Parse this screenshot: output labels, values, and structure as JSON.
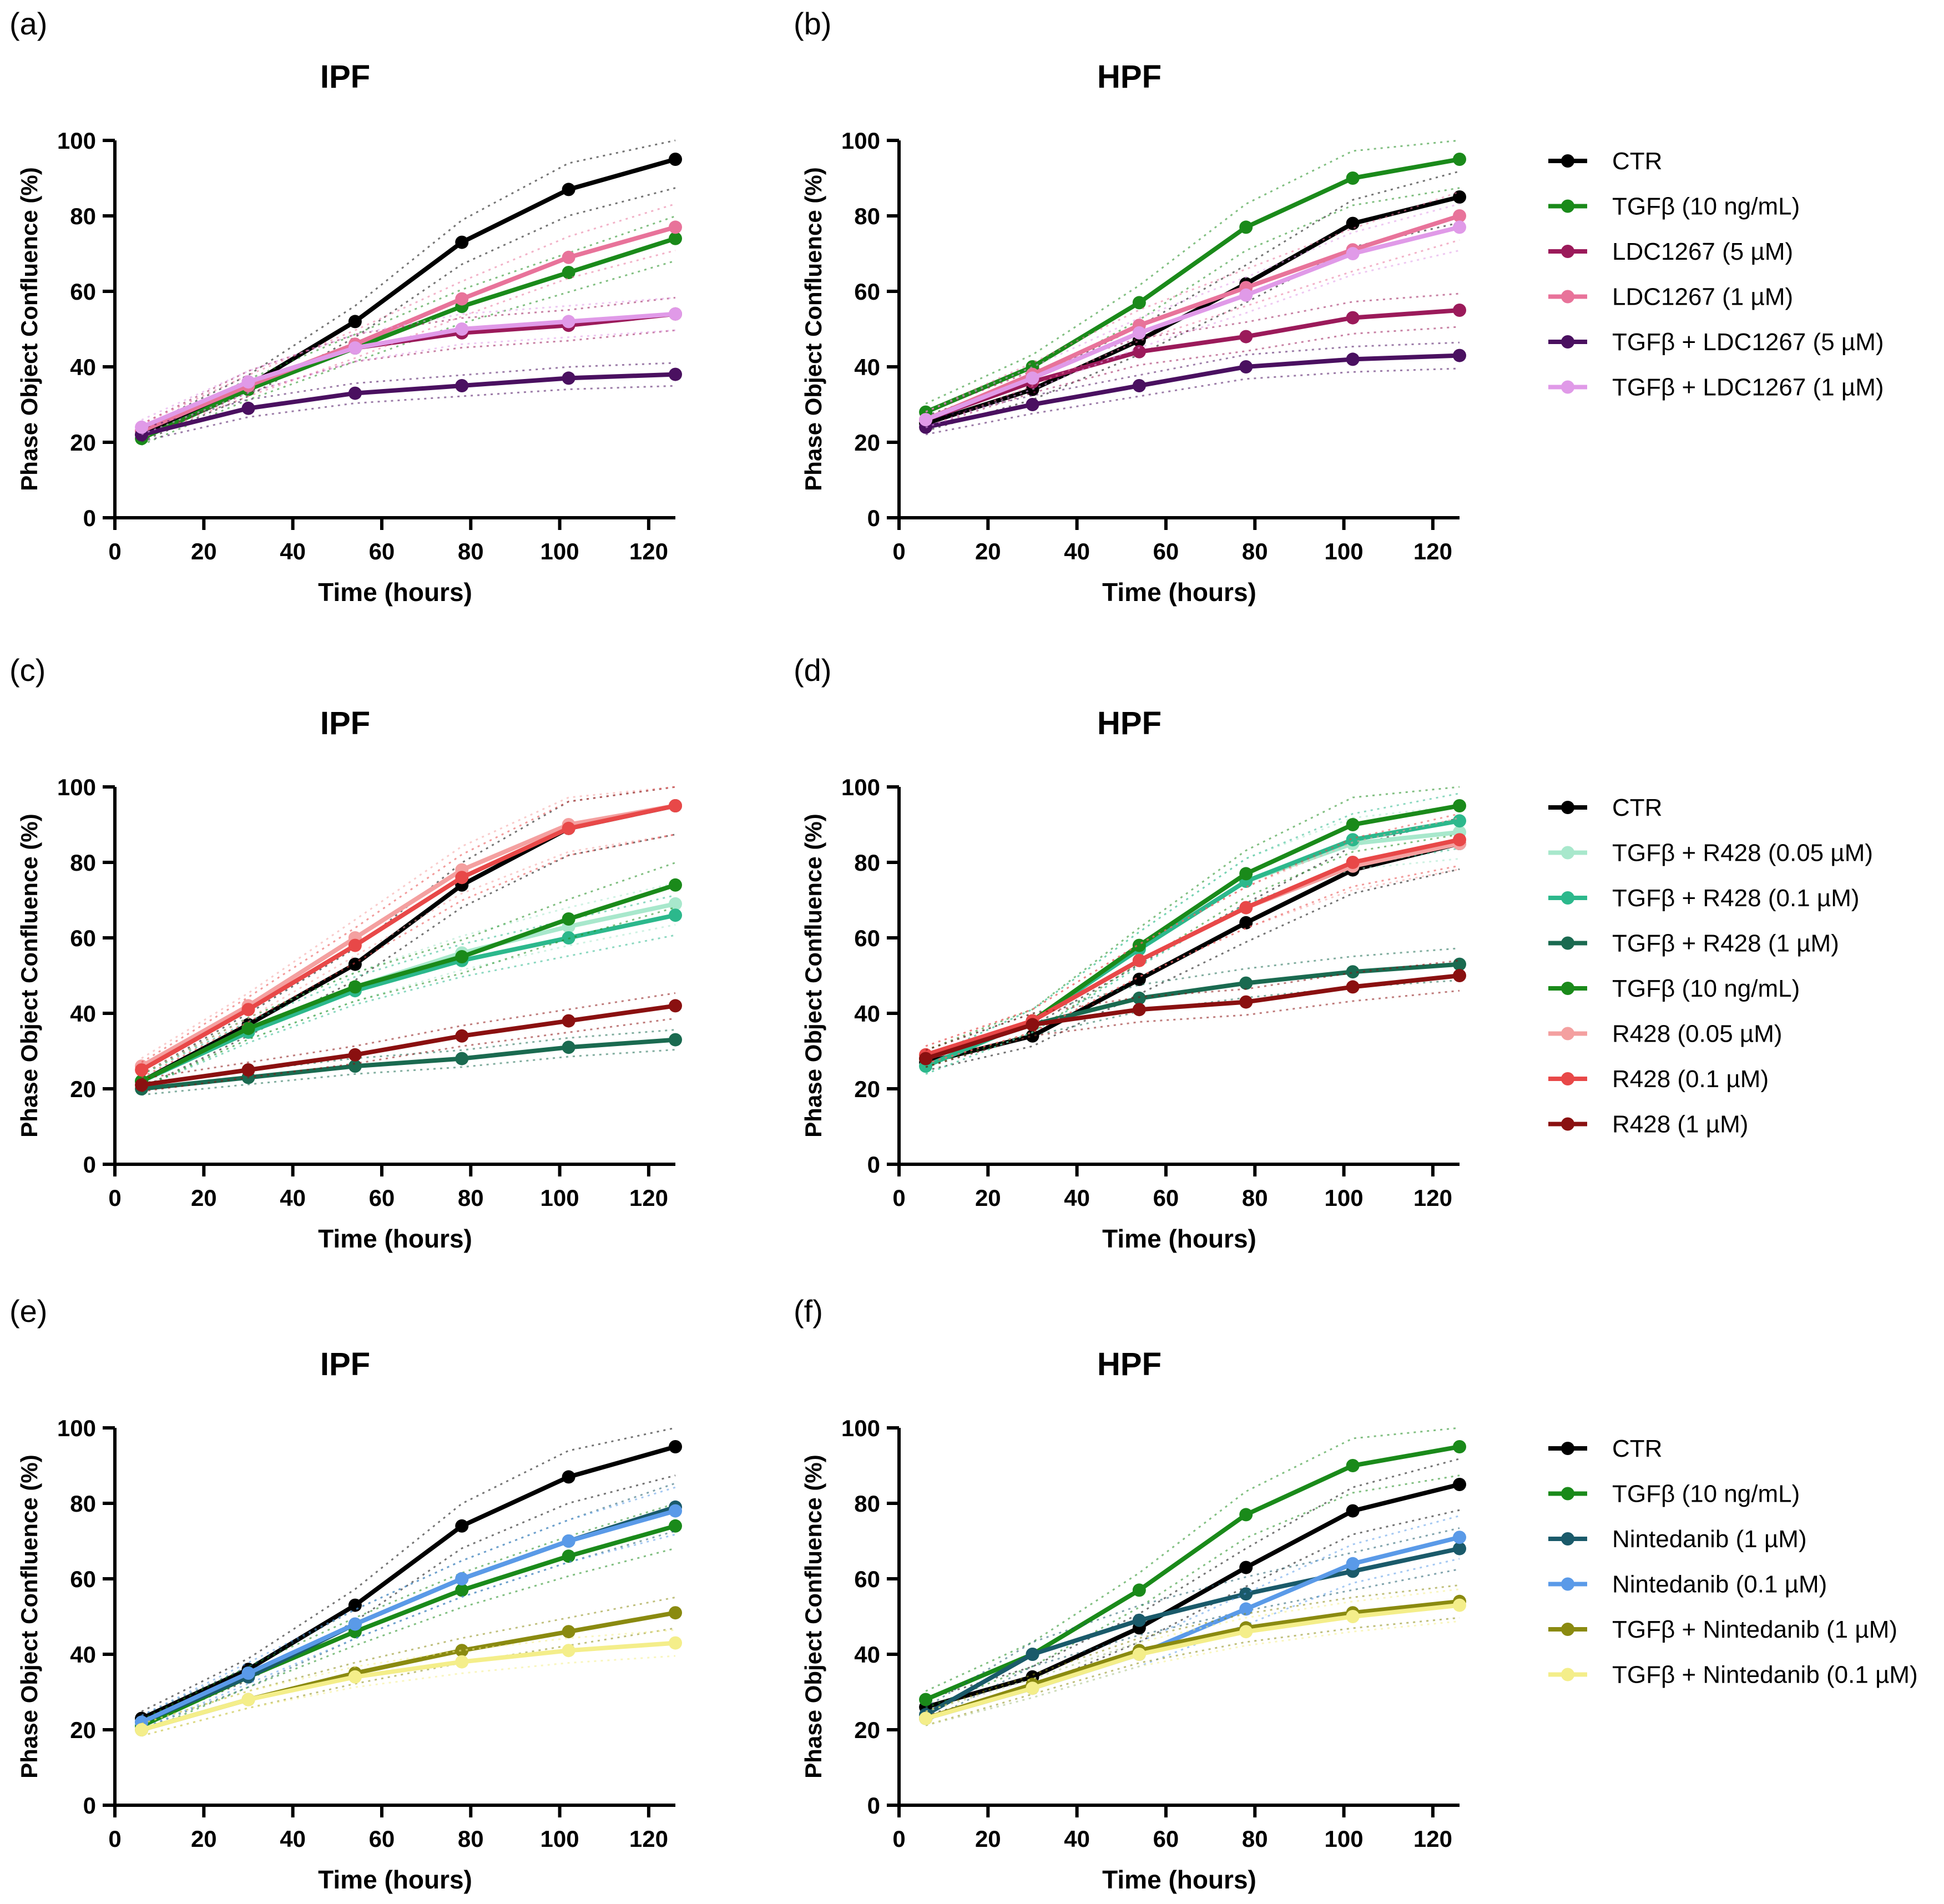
{
  "chart_data": [
    {
      "panel": "(a)",
      "title": "IPF",
      "type": "line",
      "xlabel": "Time (hours)",
      "ylabel": "Phase Object Confluence (%)",
      "xlim": [
        0,
        126
      ],
      "ylim": [
        0,
        100
      ],
      "xticks": [
        "0",
        "20",
        "40",
        "60",
        "80",
        "100",
        "120"
      ],
      "yticks": [
        "0",
        "20",
        "40",
        "60",
        "80",
        "100"
      ],
      "x": [
        6,
        30,
        54,
        78,
        102,
        126
      ],
      "series": [
        {
          "name": "CTR",
          "color": "#000000",
          "values": [
            22,
            35,
            52,
            73,
            87,
            95
          ]
        },
        {
          "name": "TGFβ (10 ng/mL)",
          "color": "#1a8a1a",
          "values": [
            21,
            34,
            45,
            56,
            65,
            74
          ]
        },
        {
          "name": "LDC1267 (5 µM)",
          "color": "#9b1a5a",
          "values": [
            23,
            36,
            45,
            49,
            51,
            54
          ]
        },
        {
          "name": "LDC1267 (1 µM)",
          "color": "#e8739a",
          "values": [
            23,
            35,
            46,
            58,
            69,
            77
          ]
        },
        {
          "name": "TGFβ + LDC1267 (5 µM)",
          "color": "#4a1060",
          "values": [
            22,
            29,
            33,
            35,
            37,
            38
          ]
        },
        {
          "name": "TGFβ + LDC1267 (1 µM)",
          "color": "#e09ae8",
          "values": [
            24,
            36,
            45,
            50,
            52,
            54
          ]
        }
      ]
    },
    {
      "panel": "(b)",
      "title": "HPF",
      "type": "line",
      "xlabel": "Time (hours)",
      "ylabel": "Phase Object Confluence (%)",
      "xlim": [
        0,
        126
      ],
      "ylim": [
        0,
        100
      ],
      "xticks": [
        "0",
        "20",
        "40",
        "60",
        "80",
        "100",
        "120"
      ],
      "yticks": [
        "0",
        "20",
        "40",
        "60",
        "80",
        "100"
      ],
      "x": [
        6,
        30,
        54,
        78,
        102,
        126
      ],
      "legend": [
        "CTR",
        "TGFβ (10 ng/mL)",
        "LDC1267 (5 µM)",
        "LDC1267 (1 µM)",
        "TGFβ + LDC1267 (5 µM)",
        "TGFβ + LDC1267 (1 µM)"
      ],
      "series": [
        {
          "name": "CTR",
          "color": "#000000",
          "values": [
            25,
            34,
            47,
            62,
            78,
            85
          ]
        },
        {
          "name": "TGFβ (10 ng/mL)",
          "color": "#1a8a1a",
          "values": [
            28,
            40,
            57,
            77,
            90,
            95
          ]
        },
        {
          "name": "LDC1267 (5 µM)",
          "color": "#9b1a5a",
          "values": [
            26,
            36,
            44,
            48,
            53,
            55
          ]
        },
        {
          "name": "LDC1267 (1 µM)",
          "color": "#e8739a",
          "values": [
            26,
            38,
            51,
            61,
            71,
            80
          ]
        },
        {
          "name": "TGFβ + LDC1267 (5 µM)",
          "color": "#4a1060",
          "values": [
            24,
            30,
            35,
            40,
            42,
            43
          ]
        },
        {
          "name": "TGFβ + LDC1267 (1 µM)",
          "color": "#e09ae8",
          "values": [
            26,
            37,
            49,
            59,
            70,
            77
          ]
        }
      ]
    },
    {
      "panel": "(c)",
      "title": "IPF",
      "type": "line",
      "xlabel": "Time (hours)",
      "ylabel": "Phase Object Confluence (%)",
      "xlim": [
        0,
        126
      ],
      "ylim": [
        0,
        100
      ],
      "xticks": [
        "0",
        "20",
        "40",
        "60",
        "80",
        "100",
        "120"
      ],
      "yticks": [
        "0",
        "20",
        "40",
        "60",
        "80",
        "100"
      ],
      "x": [
        6,
        30,
        54,
        78,
        102,
        126
      ],
      "series": [
        {
          "name": "CTR",
          "color": "#000000",
          "values": [
            22,
            37,
            53,
            74,
            89,
            95
          ]
        },
        {
          "name": "TGFβ + R428 (0.05 µM)",
          "color": "#a8e8cc",
          "values": [
            22,
            36,
            47,
            56,
            63,
            69
          ]
        },
        {
          "name": "TGFβ + R428 (0.1 µM)",
          "color": "#2cb88c",
          "values": [
            22,
            35,
            46,
            54,
            60,
            66
          ]
        },
        {
          "name": "TGFβ + R428 (1 µM)",
          "color": "#1a6a50",
          "values": [
            20,
            23,
            26,
            28,
            31,
            33
          ]
        },
        {
          "name": "TGFβ (10 ng/mL)",
          "color": "#1a8a1a",
          "values": [
            22,
            36,
            47,
            55,
            65,
            74
          ]
        },
        {
          "name": "R428 (0.05 µM)",
          "color": "#f4a0a0",
          "values": [
            26,
            42,
            60,
            78,
            90,
            95
          ]
        },
        {
          "name": "R428 (0.1 µM)",
          "color": "#e84848",
          "values": [
            25,
            41,
            58,
            76,
            89,
            95
          ]
        },
        {
          "name": "R428 (1 µM)",
          "color": "#8a1010",
          "values": [
            21,
            25,
            29,
            34,
            38,
            42
          ]
        }
      ]
    },
    {
      "panel": "(d)",
      "title": "HPF",
      "type": "line",
      "xlabel": "Time (hours)",
      "ylabel": "Phase Object Confluence (%)",
      "xlim": [
        0,
        126
      ],
      "ylim": [
        0,
        100
      ],
      "xticks": [
        "0",
        "20",
        "40",
        "60",
        "80",
        "100",
        "120"
      ],
      "yticks": [
        "0",
        "20",
        "40",
        "60",
        "80",
        "100"
      ],
      "x": [
        6,
        30,
        54,
        78,
        102,
        126
      ],
      "legend": [
        "CTR",
        "TGFβ + R428 (0.05 µM)",
        "TGFβ + R428 (0.1 µM)",
        "TGFβ + R428 (1 µM)",
        "TGFβ (10 ng/mL)",
        "R428 (0.05 µM)",
        "R428 (0.1 µM)",
        "R428 (1 µM)"
      ],
      "series": [
        {
          "name": "CTR",
          "color": "#000000",
          "values": [
            27,
            34,
            49,
            64,
            78,
            85
          ]
        },
        {
          "name": "TGFβ + R428 (0.05 µM)",
          "color": "#a8e8cc",
          "values": [
            26,
            38,
            57,
            75,
            85,
            88
          ]
        },
        {
          "name": "TGFβ + R428 (0.1 µM)",
          "color": "#2cb88c",
          "values": [
            26,
            38,
            57,
            75,
            86,
            91
          ]
        },
        {
          "name": "TGFβ + R428 (1 µM)",
          "color": "#1a6a50",
          "values": [
            28,
            37,
            44,
            48,
            51,
            53
          ]
        },
        {
          "name": "TGFβ (10 ng/mL)",
          "color": "#1a8a1a",
          "values": [
            28,
            38,
            58,
            77,
            90,
            95
          ]
        },
        {
          "name": "R428 (0.05 µM)",
          "color": "#f4a0a0",
          "values": [
            29,
            38,
            54,
            68,
            79,
            85
          ]
        },
        {
          "name": "R428 (0.1 µM)",
          "color": "#e84848",
          "values": [
            29,
            38,
            54,
            68,
            80,
            86
          ]
        },
        {
          "name": "R428 (1 µM)",
          "color": "#8a1010",
          "values": [
            28,
            37,
            41,
            43,
            47,
            50
          ]
        }
      ]
    },
    {
      "panel": "(e)",
      "title": "IPF",
      "type": "line",
      "xlabel": "Time (hours)",
      "ylabel": "Phase Object Confluence (%)",
      "xlim": [
        0,
        126
      ],
      "ylim": [
        0,
        100
      ],
      "xticks": [
        "0",
        "20",
        "40",
        "60",
        "80",
        "100",
        "120"
      ],
      "yticks": [
        "0",
        "20",
        "40",
        "60",
        "80",
        "100"
      ],
      "x": [
        6,
        30,
        54,
        78,
        102,
        126
      ],
      "series": [
        {
          "name": "CTR",
          "color": "#000000",
          "values": [
            23,
            36,
            53,
            74,
            87,
            95
          ]
        },
        {
          "name": "TGFβ (10 ng/mL)",
          "color": "#1a8a1a",
          "values": [
            21,
            34,
            46,
            57,
            66,
            74
          ]
        },
        {
          "name": "Nintedanib (1 µM)",
          "color": "#1a5a6a",
          "values": [
            22,
            34,
            48,
            60,
            70,
            79
          ]
        },
        {
          "name": "Nintedanib (0.1 µM)",
          "color": "#5a9ae8",
          "values": [
            22,
            35,
            48,
            60,
            70,
            78
          ]
        },
        {
          "name": "TGFβ + Nintedanib (1 µM)",
          "color": "#8a8a10",
          "values": [
            20,
            28,
            35,
            41,
            46,
            51
          ]
        },
        {
          "name": "TGFβ + Nintedanib (0.1 µM)",
          "color": "#f4ee8a",
          "values": [
            20,
            28,
            34,
            38,
            41,
            43
          ]
        }
      ]
    },
    {
      "panel": "(f)",
      "title": "HPF",
      "type": "line",
      "xlabel": "Time (hours)",
      "ylabel": "Phase Object Confluence (%)",
      "xlim": [
        0,
        126
      ],
      "ylim": [
        0,
        100
      ],
      "xticks": [
        "0",
        "20",
        "40",
        "60",
        "80",
        "100",
        "120"
      ],
      "yticks": [
        "0",
        "20",
        "40",
        "60",
        "80",
        "100"
      ],
      "x": [
        6,
        30,
        54,
        78,
        102,
        126
      ],
      "legend": [
        "CTR",
        "TGFβ (10 ng/mL)",
        "Nintedanib (1 µM)",
        "Nintedanib (0.1 µM)",
        "TGFβ + Nintedanib (1 µM)",
        "TGFβ + Nintedanib (0.1 µM)"
      ],
      "series": [
        {
          "name": "CTR",
          "color": "#000000",
          "values": [
            26,
            34,
            47,
            63,
            78,
            85
          ]
        },
        {
          "name": "TGFβ (10 ng/mL)",
          "color": "#1a8a1a",
          "values": [
            28,
            40,
            57,
            77,
            90,
            95
          ]
        },
        {
          "name": "Nintedanib (1 µM)",
          "color": "#1a5a6a",
          "values": [
            24,
            40,
            49,
            56,
            62,
            68
          ]
        },
        {
          "name": "Nintedanib (0.1 µM)",
          "color": "#5a9ae8",
          "values": [
            23,
            31,
            40,
            52,
            64,
            71
          ]
        },
        {
          "name": "TGFβ + Nintedanib (1 µM)",
          "color": "#8a8a10",
          "values": [
            23,
            32,
            41,
            47,
            51,
            54
          ]
        },
        {
          "name": "TGFβ + Nintedanib (0.1 µM)",
          "color": "#f4ee8a",
          "values": [
            23,
            31,
            40,
            46,
            50,
            53
          ]
        }
      ]
    }
  ]
}
